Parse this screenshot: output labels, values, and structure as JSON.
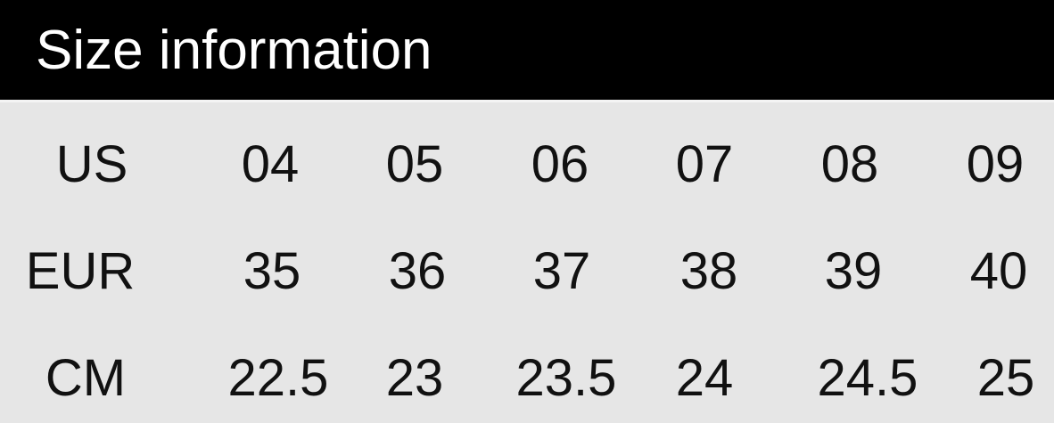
{
  "title": "Size information",
  "rows": [
    {
      "label": "US",
      "values": [
        "04",
        "05",
        "06",
        "07",
        "08",
        "09"
      ]
    },
    {
      "label": "EUR",
      "values": [
        "35",
        "36",
        "37",
        "38",
        "39",
        "40"
      ]
    },
    {
      "label": "CM",
      "values": [
        "22.5",
        "23",
        "23.5",
        "24",
        "24.5",
        "25"
      ]
    }
  ]
}
